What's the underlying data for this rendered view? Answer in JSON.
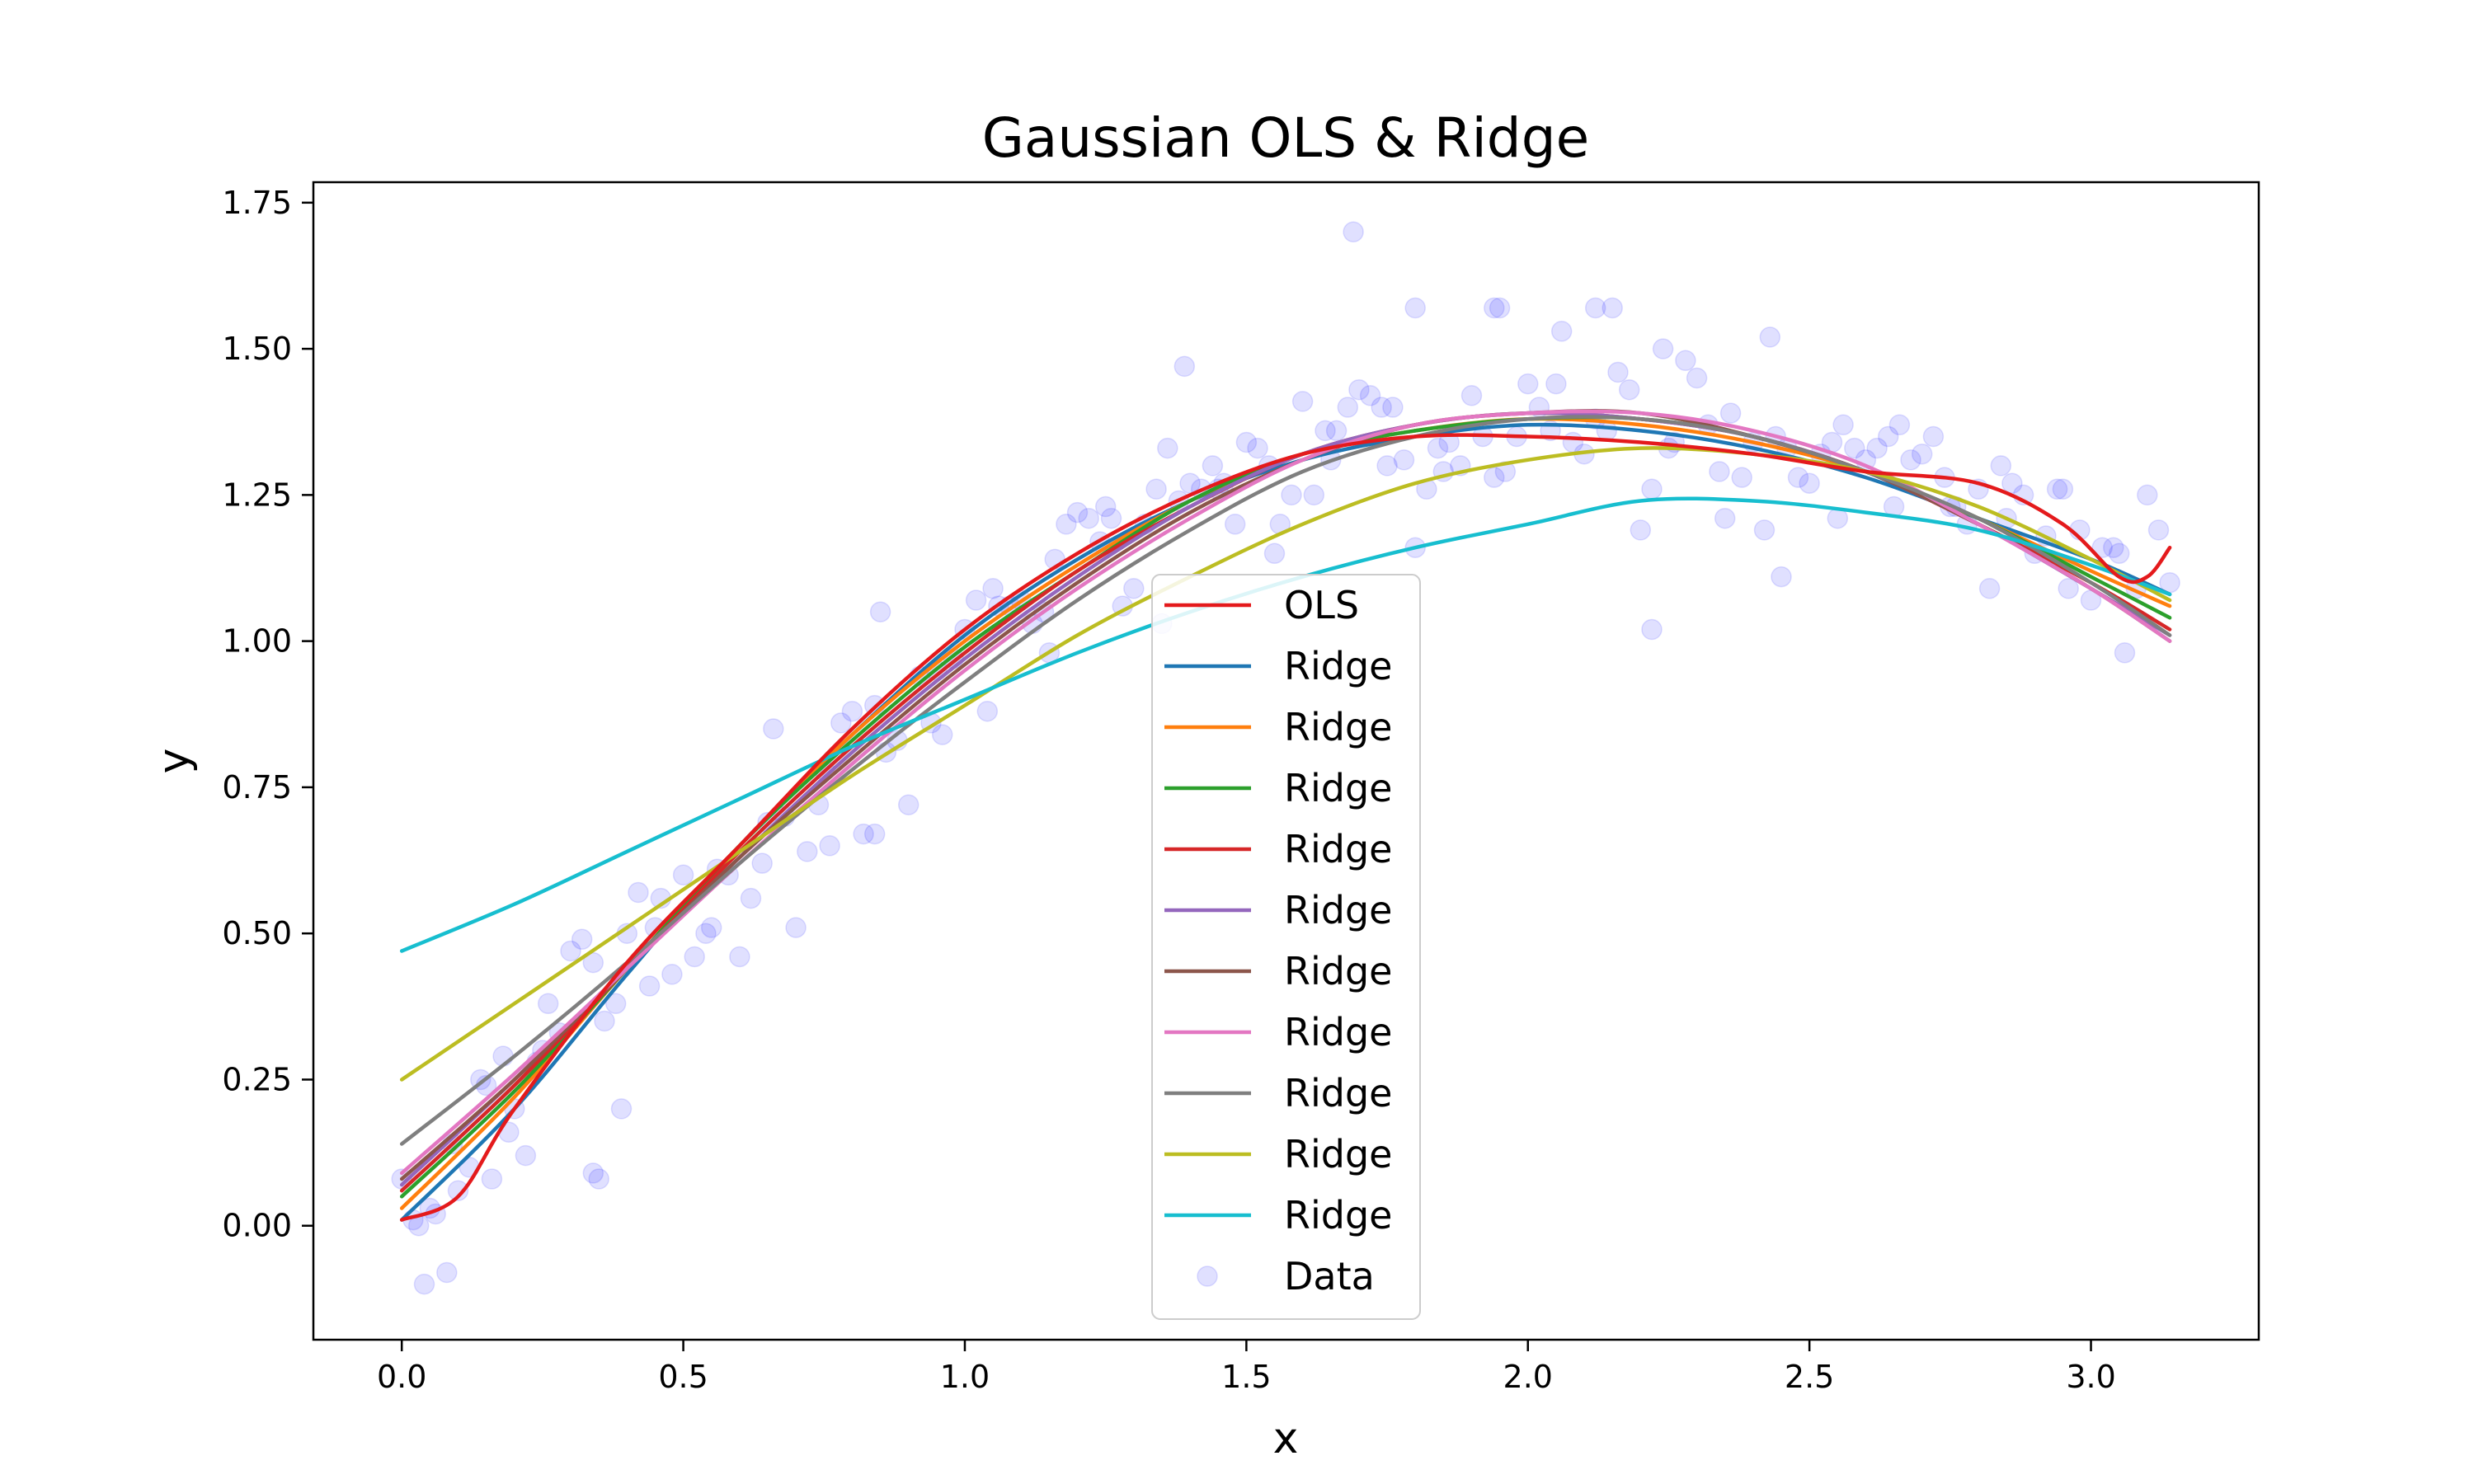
{
  "chart_data": {
    "type": "line",
    "title": "Gaussian OLS & Ridge",
    "xlabel": "x",
    "ylabel": "y",
    "xlim": [
      -0.157,
      3.298
    ],
    "ylim": [
      -0.195,
      1.785
    ],
    "xticks": [
      0.0,
      0.5,
      1.0,
      1.5,
      2.0,
      2.5,
      3.0
    ],
    "xtick_labels": [
      "0.0",
      "0.5",
      "1.0",
      "1.5",
      "2.0",
      "2.5",
      "3.0"
    ],
    "yticks": [
      0.0,
      0.25,
      0.5,
      0.75,
      1.0,
      1.25,
      1.5,
      1.75
    ],
    "ytick_labels": [
      "0.00",
      "0.25",
      "0.50",
      "0.75",
      "1.00",
      "1.25",
      "1.50",
      "1.75"
    ],
    "grid": false,
    "legend_position": "center-bottom",
    "series": [
      {
        "name": "OLS",
        "color": "#e41a1c",
        "x": [
          0.0,
          0.1,
          0.2,
          0.4,
          0.6,
          0.8,
          1.0,
          1.2,
          1.4,
          1.6,
          1.8,
          2.0,
          2.2,
          2.4,
          2.6,
          2.8,
          2.95,
          3.05,
          3.1,
          3.14
        ],
        "y": [
          0.01,
          0.05,
          0.2,
          0.45,
          0.65,
          0.85,
          1.02,
          1.15,
          1.25,
          1.32,
          1.35,
          1.35,
          1.34,
          1.32,
          1.29,
          1.27,
          1.2,
          1.11,
          1.11,
          1.16
        ]
      },
      {
        "name": "Ridge",
        "color": "#1f77b4",
        "x": [
          0.0,
          0.2,
          0.4,
          0.6,
          0.8,
          1.0,
          1.2,
          1.4,
          1.6,
          1.8,
          2.0,
          2.2,
          2.4,
          2.6,
          2.8,
          3.0,
          3.14
        ],
        "y": [
          0.01,
          0.2,
          0.43,
          0.65,
          0.84,
          1.01,
          1.14,
          1.24,
          1.31,
          1.35,
          1.37,
          1.36,
          1.33,
          1.28,
          1.21,
          1.14,
          1.08
        ]
      },
      {
        "name": "Ridge",
        "color": "#ff7f0e",
        "x": [
          0.0,
          0.2,
          0.4,
          0.6,
          0.8,
          1.0,
          1.2,
          1.4,
          1.6,
          1.8,
          2.0,
          2.2,
          2.4,
          2.6,
          2.8,
          3.0,
          3.14
        ],
        "y": [
          0.03,
          0.22,
          0.44,
          0.65,
          0.84,
          1.0,
          1.13,
          1.24,
          1.32,
          1.36,
          1.38,
          1.37,
          1.34,
          1.29,
          1.21,
          1.12,
          1.06
        ]
      },
      {
        "name": "Ridge",
        "color": "#2ca02c",
        "x": [
          0.0,
          0.2,
          0.4,
          0.6,
          0.8,
          1.0,
          1.2,
          1.4,
          1.6,
          1.8,
          2.0,
          2.2,
          2.4,
          2.6,
          2.8,
          3.0,
          3.14
        ],
        "y": [
          0.05,
          0.23,
          0.44,
          0.65,
          0.83,
          0.99,
          1.12,
          1.24,
          1.32,
          1.36,
          1.38,
          1.38,
          1.35,
          1.29,
          1.21,
          1.11,
          1.04
        ]
      },
      {
        "name": "Ridge",
        "color": "#d62728",
        "x": [
          0.0,
          0.2,
          0.4,
          0.6,
          0.8,
          1.0,
          1.2,
          1.4,
          1.6,
          1.8,
          2.0,
          2.2,
          2.4,
          2.6,
          2.8,
          3.0,
          3.14
        ],
        "y": [
          0.06,
          0.24,
          0.44,
          0.64,
          0.82,
          0.98,
          1.12,
          1.23,
          1.32,
          1.37,
          1.39,
          1.38,
          1.35,
          1.29,
          1.2,
          1.1,
          1.02
        ]
      },
      {
        "name": "Ridge",
        "color": "#9467bd",
        "x": [
          0.0,
          0.2,
          0.4,
          0.6,
          0.8,
          1.0,
          1.2,
          1.4,
          1.6,
          1.8,
          2.0,
          2.2,
          2.4,
          2.6,
          2.8,
          3.0,
          3.14
        ],
        "y": [
          0.07,
          0.25,
          0.44,
          0.63,
          0.81,
          0.97,
          1.11,
          1.23,
          1.32,
          1.37,
          1.39,
          1.38,
          1.35,
          1.29,
          1.2,
          1.09,
          1.01
        ]
      },
      {
        "name": "Ridge",
        "color": "#8c564b",
        "x": [
          0.0,
          0.2,
          0.4,
          0.6,
          0.8,
          1.0,
          1.2,
          1.4,
          1.6,
          1.8,
          2.0,
          2.2,
          2.4,
          2.6,
          2.8,
          3.0,
          3.14
        ],
        "y": [
          0.08,
          0.25,
          0.44,
          0.63,
          0.8,
          0.96,
          1.1,
          1.22,
          1.31,
          1.37,
          1.39,
          1.39,
          1.35,
          1.29,
          1.2,
          1.09,
          1.0
        ]
      },
      {
        "name": "Ridge",
        "color": "#e377c2",
        "x": [
          0.0,
          0.2,
          0.4,
          0.6,
          0.8,
          1.0,
          1.2,
          1.4,
          1.6,
          1.8,
          2.0,
          2.2,
          2.4,
          2.6,
          2.8,
          3.0,
          3.14
        ],
        "y": [
          0.09,
          0.26,
          0.44,
          0.62,
          0.79,
          0.95,
          1.09,
          1.21,
          1.31,
          1.37,
          1.39,
          1.39,
          1.36,
          1.3,
          1.2,
          1.09,
          1.0
        ]
      },
      {
        "name": "Ridge",
        "color": "#7f7f7f",
        "x": [
          0.0,
          0.2,
          0.4,
          0.6,
          0.8,
          1.0,
          1.2,
          1.4,
          1.6,
          1.8,
          2.0,
          2.2,
          2.4,
          2.6,
          2.8,
          3.0,
          3.14
        ],
        "y": [
          0.14,
          0.29,
          0.45,
          0.62,
          0.78,
          0.93,
          1.07,
          1.19,
          1.29,
          1.35,
          1.38,
          1.38,
          1.35,
          1.29,
          1.21,
          1.1,
          1.01
        ]
      },
      {
        "name": "Ridge",
        "color": "#bcbd22",
        "x": [
          0.0,
          0.2,
          0.4,
          0.6,
          0.8,
          1.0,
          1.2,
          1.4,
          1.6,
          1.8,
          2.0,
          2.2,
          2.4,
          2.6,
          2.8,
          3.0,
          3.14
        ],
        "y": [
          0.25,
          0.38,
          0.51,
          0.64,
          0.77,
          0.89,
          1.01,
          1.11,
          1.2,
          1.27,
          1.31,
          1.33,
          1.32,
          1.29,
          1.23,
          1.14,
          1.07
        ]
      },
      {
        "name": "Ridge",
        "color": "#17becf",
        "x": [
          0.0,
          0.2,
          0.4,
          0.6,
          0.8,
          1.0,
          1.2,
          1.4,
          1.6,
          1.8,
          2.0,
          2.2,
          2.4,
          2.6,
          2.8,
          3.0,
          3.14
        ],
        "y": [
          0.47,
          0.55,
          0.64,
          0.73,
          0.82,
          0.9,
          0.98,
          1.05,
          1.11,
          1.16,
          1.2,
          1.24,
          1.24,
          1.22,
          1.19,
          1.13,
          1.08
        ]
      }
    ],
    "scatter": {
      "name": "Data",
      "color": "#0000ff",
      "opacity": 0.12,
      "x": [
        0.0,
        0.02,
        0.03,
        0.04,
        0.06,
        0.08,
        0.1,
        0.12,
        0.14,
        0.16,
        0.18,
        0.2,
        0.22,
        0.24,
        0.26,
        0.28,
        0.3,
        0.32,
        0.34,
        0.36,
        0.38,
        0.4,
        0.42,
        0.44,
        0.46,
        0.48,
        0.5,
        0.52,
        0.54,
        0.56,
        0.58,
        0.6,
        0.62,
        0.64,
        0.66,
        0.68,
        0.7,
        0.72,
        0.74,
        0.76,
        0.78,
        0.8,
        0.82,
        0.84,
        0.86,
        0.88,
        0.9,
        0.92,
        0.94,
        0.96,
        0.98,
        1.0,
        1.02,
        1.04,
        1.06,
        1.08,
        1.1,
        1.12,
        1.14,
        1.16,
        1.18,
        1.2,
        1.22,
        1.24,
        1.26,
        1.28,
        1.3,
        1.32,
        1.34,
        1.36,
        1.38,
        1.4,
        1.42,
        1.44,
        1.46,
        1.48,
        1.5,
        1.52,
        1.54,
        1.56,
        1.58,
        1.6,
        1.62,
        1.64,
        1.66,
        1.68,
        1.7,
        1.72,
        1.74,
        1.76,
        1.78,
        1.8,
        1.82,
        1.84,
        1.86,
        1.88,
        1.9,
        1.92,
        1.94,
        1.96,
        1.98,
        2.0,
        2.02,
        2.04,
        2.06,
        2.08,
        2.1,
        2.12,
        2.14,
        2.16,
        2.18,
        2.2,
        2.22,
        2.24,
        2.26,
        2.28,
        2.3,
        2.32,
        2.34,
        2.36,
        2.38,
        2.4,
        2.42,
        2.44,
        2.46,
        2.48,
        2.5,
        2.52,
        2.54,
        2.56,
        2.58,
        2.6,
        2.62,
        2.64,
        2.66,
        2.68,
        2.7,
        2.72,
        2.74,
        2.76,
        2.78,
        2.8,
        2.82,
        2.84,
        2.86,
        2.88,
        2.9,
        2.92,
        2.94,
        2.96,
        2.98,
        3.0,
        3.02,
        3.04,
        3.06,
        3.08,
        3.1,
        3.12,
        3.14,
        0.05,
        0.09,
        0.15,
        0.25,
        0.35,
        0.45,
        0.55,
        0.65,
        0.75,
        0.85,
        0.95,
        1.05,
        1.15,
        1.25,
        1.35,
        1.45,
        1.55,
        1.65,
        1.75,
        1.85,
        1.95,
        2.05,
        2.15,
        2.25,
        2.35,
        2.45,
        2.55,
        2.65,
        2.75,
        2.85,
        2.95,
        3.05,
        1.69,
        1.8,
        1.94,
        2.12,
        2.22,
        2.43,
        0.39,
        0.84,
        1.39,
        0.34,
        0.19
      ],
      "y": [
        0.08,
        0.01,
        0.0,
        -0.1,
        0.02,
        -0.08,
        0.06,
        0.1,
        0.25,
        0.08,
        0.29,
        0.2,
        0.12,
        0.28,
        0.38,
        0.33,
        0.47,
        0.49,
        0.45,
        0.35,
        0.38,
        0.5,
        0.57,
        0.41,
        0.56,
        0.43,
        0.6,
        0.46,
        0.5,
        0.61,
        0.6,
        0.46,
        0.56,
        0.62,
        0.85,
        0.7,
        0.51,
        0.64,
        0.72,
        0.65,
        0.86,
        0.88,
        0.67,
        0.89,
        0.81,
        0.83,
        0.72,
        0.94,
        0.86,
        0.84,
        0.97,
        1.02,
        1.07,
        0.88,
        1.06,
        1.06,
        1.07,
        1.03,
        1.05,
        1.14,
        1.2,
        1.22,
        1.21,
        1.17,
        1.21,
        1.06,
        1.09,
        1.2,
        1.26,
        1.33,
        1.24,
        1.27,
        1.26,
        1.3,
        1.27,
        1.2,
        1.34,
        1.33,
        1.3,
        1.2,
        1.25,
        1.41,
        1.25,
        1.36,
        1.36,
        1.4,
        1.43,
        1.42,
        1.4,
        1.4,
        1.31,
        1.16,
        1.26,
        1.33,
        1.34,
        1.3,
        1.42,
        1.35,
        1.28,
        1.29,
        1.35,
        1.44,
        1.4,
        1.36,
        1.53,
        1.34,
        1.32,
        1.38,
        1.36,
        1.46,
        1.43,
        1.19,
        1.26,
        1.5,
        1.34,
        1.48,
        1.45,
        1.37,
        1.29,
        1.39,
        1.28,
        1.34,
        1.19,
        1.35,
        1.33,
        1.28,
        1.27,
        1.32,
        1.34,
        1.37,
        1.33,
        1.31,
        1.33,
        1.35,
        1.37,
        1.31,
        1.32,
        1.35,
        1.28,
        1.23,
        1.2,
        1.26,
        1.09,
        1.3,
        1.27,
        1.25,
        1.15,
        1.18,
        1.26,
        1.09,
        1.19,
        1.07,
        1.16,
        1.16,
        0.98,
        1.09,
        1.25,
        1.19,
        1.1,
        0.03,
        0.14,
        0.24,
        0.3,
        0.08,
        0.51,
        0.51,
        0.69,
        0.78,
        1.05,
        0.95,
        1.09,
        0.98,
        1.23,
        1.03,
        1.26,
        1.15,
        1.31,
        1.3,
        1.29,
        1.57,
        1.44,
        1.57,
        1.33,
        1.21,
        1.11,
        1.21,
        1.23,
        1.23,
        1.21,
        1.26,
        1.15,
        1.7,
        1.57,
        1.57,
        1.57,
        1.02,
        1.52,
        0.2,
        0.67,
        1.47,
        0.09,
        0.16
      ]
    }
  }
}
